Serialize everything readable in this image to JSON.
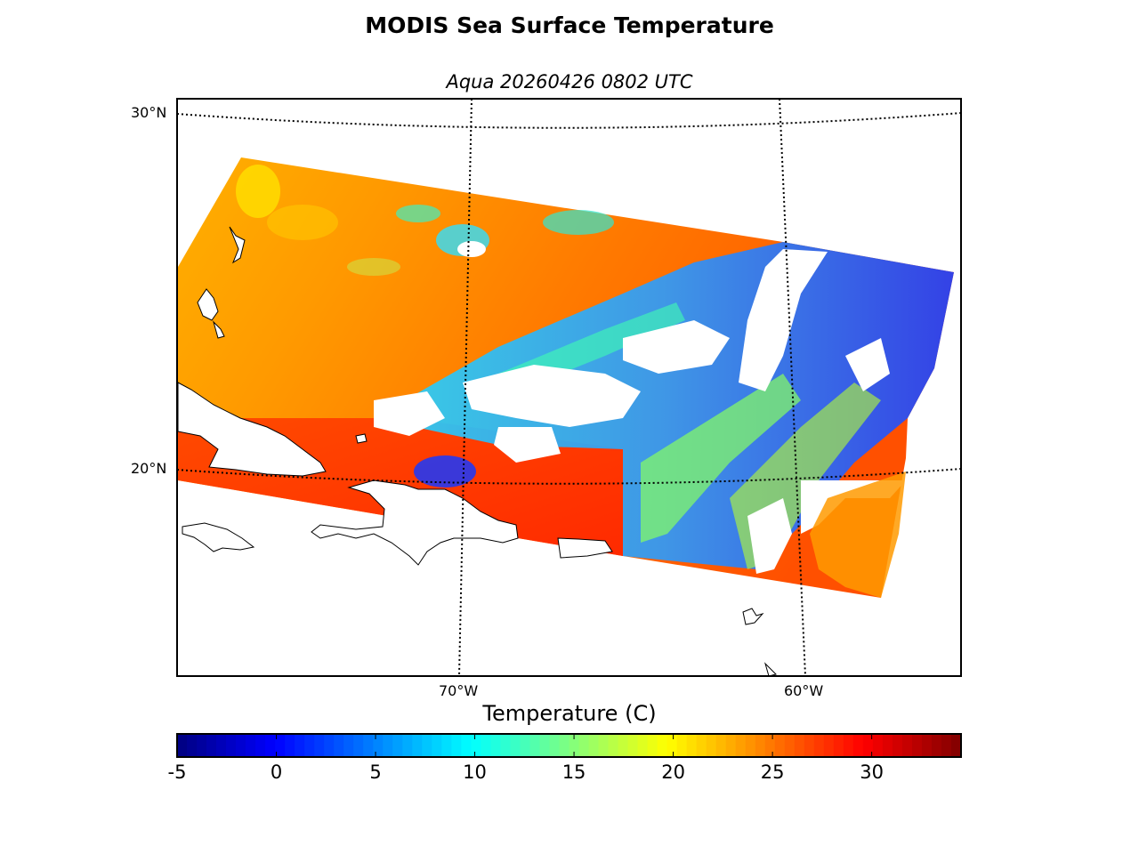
{
  "title": "MODIS Sea Surface Temperature",
  "subtitle": "Aqua 20260426 0802 UTC",
  "map": {
    "lat_labels": [
      "30°N",
      "20°N"
    ],
    "lon_labels": [
      "70°W",
      "60°W"
    ],
    "graticule": "dotted"
  },
  "colorbar": {
    "label": "Temperature (C)",
    "colormap": "jet",
    "vmin": -5,
    "vmax": 34.5,
    "ticks": [
      "-5",
      "0",
      "5",
      "10",
      "15",
      "20",
      "25",
      "30"
    ]
  },
  "colors": {
    "warm_sea": "#ff8c00",
    "hot_sea": "#ff3c00",
    "cool_cloudy": "#00c8ff",
    "cold_cloud": "#0030ff",
    "land": "#ffffff",
    "no_data": "#ffffff"
  }
}
